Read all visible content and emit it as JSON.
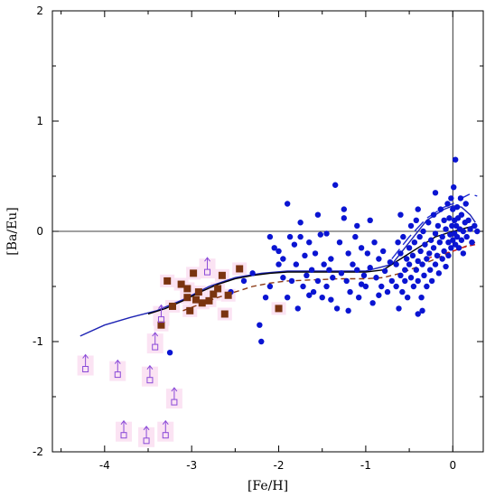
{
  "chart_data": {
    "type": "scatter",
    "title": "",
    "xlabel": "[Fe/H]",
    "ylabel": "[Ba/Eu]",
    "xlim": [
      -4.6,
      0.35
    ],
    "ylim": [
      -2.0,
      2.0
    ],
    "x_ticks": [
      -4,
      -3,
      -2,
      -1,
      0
    ],
    "y_ticks": [
      -2,
      -1,
      0,
      1,
      2
    ],
    "x_tick_labels": [
      "-4",
      "-3",
      "-2",
      "-1",
      "0"
    ],
    "y_tick_labels": [
      "-2",
      "-1",
      "0",
      "1",
      "2"
    ],
    "reference_lines": {
      "y": 0,
      "x": 0
    },
    "grid": false,
    "legend": "none",
    "colors": {
      "blue_points": "#0a14d2",
      "brown_squares": "#7a3410",
      "upper_limits": "#8a4ad8",
      "highlight": "#fbe3f3",
      "model_blue": "#1e24b4",
      "model_black": "#000000",
      "model_dashed": "#8b3a14",
      "model_red_dashed": "#d21e1e",
      "model_long_dash_blue": "#1e2ad2"
    },
    "series": [
      {
        "marker": "circle",
        "color": "#0a14d2",
        "points": [
          [
            -3.25,
            -1.1
          ],
          [
            -2.55,
            -0.55
          ],
          [
            -2.4,
            -0.45
          ],
          [
            -2.3,
            -0.38
          ],
          [
            -2.22,
            -0.85
          ],
          [
            -2.2,
            -1.0
          ],
          [
            -2.15,
            -0.6
          ],
          [
            -2.1,
            -0.5
          ],
          [
            -2.05,
            -0.15
          ],
          [
            -2.0,
            -0.3
          ],
          [
            -1.95,
            -0.25
          ],
          [
            -1.9,
            -0.6
          ],
          [
            -1.87,
            -0.05
          ],
          [
            -1.85,
            -0.45
          ],
          [
            -1.82,
            -0.12
          ],
          [
            -1.8,
            -0.3
          ],
          [
            -1.78,
            -0.7
          ],
          [
            -1.75,
            -0.05
          ],
          [
            -1.72,
            -0.5
          ],
          [
            -1.7,
            -0.22
          ],
          [
            -1.68,
            -0.4
          ],
          [
            -1.65,
            -0.1
          ],
          [
            -1.62,
            -0.35
          ],
          [
            -1.6,
            -0.55
          ],
          [
            -1.58,
            -0.2
          ],
          [
            -1.55,
            -0.45
          ],
          [
            -1.52,
            -0.03
          ],
          [
            -1.5,
            -0.6
          ],
          [
            -1.48,
            -0.3
          ],
          [
            -1.45,
            -0.5
          ],
          [
            -1.42,
            -0.35
          ],
          [
            -1.4,
            -0.25
          ],
          [
            -1.38,
            -0.42
          ],
          [
            -1.35,
            0.42
          ],
          [
            -1.33,
            -0.7
          ],
          [
            -1.3,
            -0.1
          ],
          [
            -1.28,
            -0.38
          ],
          [
            -1.25,
            0.12
          ],
          [
            -1.22,
            -0.45
          ],
          [
            -1.2,
            -0.2
          ],
          [
            -1.18,
            -0.55
          ],
          [
            -1.15,
            -0.3
          ],
          [
            -1.12,
            -0.05
          ],
          [
            -1.1,
            -0.35
          ],
          [
            -1.08,
            -0.6
          ],
          [
            -1.05,
            -0.15
          ],
          [
            -1.02,
            -0.4
          ],
          [
            -1.0,
            -0.5
          ],
          [
            -0.98,
            -0.2
          ],
          [
            -0.95,
            -0.33
          ],
          [
            -0.92,
            -0.65
          ],
          [
            -0.9,
            -0.1
          ],
          [
            -0.88,
            -0.42
          ],
          [
            -0.85,
            -0.25
          ],
          [
            -0.82,
            -0.5
          ],
          [
            -0.8,
            -0.18
          ],
          [
            -0.78,
            -0.36
          ],
          [
            -0.75,
            -0.55
          ],
          [
            -0.72,
            -0.28
          ],
          [
            -0.7,
            -0.45
          ],
          [
            -1.9,
            0.25
          ],
          [
            -1.75,
            0.08
          ],
          [
            -1.55,
            0.15
          ],
          [
            -1.45,
            -0.02
          ],
          [
            -1.25,
            0.2
          ],
          [
            -1.1,
            0.05
          ],
          [
            -0.95,
            0.1
          ],
          [
            -2.1,
            -0.05
          ],
          [
            -2.0,
            -0.18
          ],
          [
            -1.95,
            -0.42
          ],
          [
            -1.65,
            -0.58
          ],
          [
            -1.4,
            -0.62
          ],
          [
            -1.2,
            -0.72
          ],
          [
            -1.05,
            -0.48
          ],
          [
            -0.85,
            -0.58
          ],
          [
            -0.65,
            -0.3
          ],
          [
            -0.65,
            -0.5
          ],
          [
            -0.63,
            -0.1
          ],
          [
            -0.62,
            -0.7
          ],
          [
            -0.6,
            -0.4
          ],
          [
            -0.6,
            -0.2
          ],
          [
            -0.58,
            -0.55
          ],
          [
            -0.57,
            -0.05
          ],
          [
            -0.55,
            -0.35
          ],
          [
            -0.55,
            -0.45
          ],
          [
            -0.53,
            -0.25
          ],
          [
            -0.52,
            -0.6
          ],
          [
            -0.5,
            -0.15
          ],
          [
            -0.5,
            -0.3
          ],
          [
            -0.48,
            0.05
          ],
          [
            -0.48,
            -0.42
          ],
          [
            -0.46,
            -0.22
          ],
          [
            -0.45,
            -0.5
          ],
          [
            -0.44,
            -0.1
          ],
          [
            -0.42,
            -0.35
          ],
          [
            -0.42,
            0.1
          ],
          [
            -0.4,
            -0.27
          ],
          [
            -0.4,
            -0.45
          ],
          [
            -0.38,
            -0.05
          ],
          [
            -0.37,
            -0.18
          ],
          [
            -0.36,
            -0.6
          ],
          [
            -0.35,
            -0.3
          ],
          [
            -0.34,
            0.0
          ],
          [
            -0.33,
            -0.4
          ],
          [
            -0.32,
            -0.12
          ],
          [
            -0.3,
            -0.25
          ],
          [
            -0.3,
            -0.5
          ],
          [
            -0.28,
            0.08
          ],
          [
            -0.27,
            -0.2
          ],
          [
            -0.26,
            -0.35
          ],
          [
            -0.25,
            -0.08
          ],
          [
            -0.24,
            -0.45
          ],
          [
            -0.22,
            -0.15
          ],
          [
            -0.22,
            0.15
          ],
          [
            -0.2,
            -0.3
          ],
          [
            -0.2,
            -0.02
          ],
          [
            -0.18,
            -0.22
          ],
          [
            -0.17,
            0.05
          ],
          [
            -0.16,
            -0.38
          ],
          [
            -0.15,
            -0.1
          ],
          [
            -0.14,
            0.2
          ],
          [
            -0.12,
            -0.25
          ],
          [
            -0.12,
            -0.05
          ],
          [
            -0.1,
            0.1
          ],
          [
            -0.1,
            -0.18
          ],
          [
            -0.08,
            -0.32
          ],
          [
            -0.08,
            0.02
          ],
          [
            -0.06,
            0.25
          ],
          [
            -0.05,
            -0.1
          ],
          [
            -0.05,
            -0.22
          ],
          [
            -0.04,
            0.12
          ],
          [
            -0.03,
            -0.03
          ],
          [
            -0.02,
            0.3
          ],
          [
            -0.02,
            -0.15
          ],
          [
            -0.01,
            0.05
          ],
          [
            0.0,
            -0.08
          ],
          [
            0.0,
            0.2
          ],
          [
            0.01,
            0.4
          ],
          [
            0.02,
            -0.02
          ],
          [
            0.02,
            0.1
          ],
          [
            0.03,
            -0.12
          ],
          [
            0.04,
            0.05
          ],
          [
            0.05,
            0.22
          ],
          [
            0.05,
            -0.05
          ],
          [
            0.06,
            0.12
          ],
          [
            0.07,
            -0.15
          ],
          [
            0.08,
            0.02
          ],
          [
            0.09,
            0.3
          ],
          [
            0.1,
            -0.08
          ],
          [
            0.1,
            0.15
          ],
          [
            0.12,
            0.0
          ],
          [
            0.12,
            -0.2
          ],
          [
            0.14,
            0.08
          ],
          [
            0.15,
            0.25
          ],
          [
            0.16,
            -0.05
          ],
          [
            0.18,
            0.1
          ],
          [
            0.2,
            0.02
          ],
          [
            0.22,
            -0.1
          ],
          [
            0.25,
            0.05
          ],
          [
            0.28,
            0.0
          ],
          [
            0.03,
            0.65
          ],
          [
            -0.4,
            -0.75
          ],
          [
            -0.35,
            -0.72
          ],
          [
            -0.4,
            0.2
          ],
          [
            -0.6,
            0.15
          ],
          [
            -0.2,
            0.35
          ]
        ]
      },
      {
        "marker": "square",
        "color": "#7a3410",
        "points": [
          [
            -3.28,
            -0.45
          ],
          [
            -3.22,
            -0.68
          ],
          [
            -3.12,
            -0.48
          ],
          [
            -3.05,
            -0.6
          ],
          [
            -3.02,
            -0.72
          ],
          [
            -2.98,
            -0.38
          ],
          [
            -2.95,
            -0.62
          ],
          [
            -2.92,
            -0.55
          ],
          [
            -2.88,
            -0.65
          ],
          [
            -2.8,
            -0.63
          ],
          [
            -2.75,
            -0.57
          ],
          [
            -2.7,
            -0.52
          ],
          [
            -2.65,
            -0.4
          ],
          [
            -2.62,
            -0.75
          ],
          [
            -2.58,
            -0.58
          ],
          [
            -2.45,
            -0.34
          ],
          [
            -3.05,
            -0.52
          ],
          [
            -3.35,
            -0.85
          ],
          [
            -2.0,
            -0.7
          ]
        ]
      },
      {
        "marker": "upper-limit",
        "color": "#8a4ad8",
        "points": [
          [
            -4.22,
            -1.25
          ],
          [
            -3.85,
            -1.3
          ],
          [
            -3.78,
            -1.85
          ],
          [
            -3.52,
            -1.9
          ],
          [
            -3.48,
            -1.35
          ],
          [
            -3.42,
            -1.05
          ],
          [
            -3.35,
            -0.8
          ],
          [
            -3.3,
            -1.85
          ],
          [
            -3.2,
            -1.55
          ],
          [
            -2.82,
            -0.37
          ]
        ]
      }
    ],
    "model_curves": [
      {
        "style": "solid",
        "color": "#1e24b4",
        "x": [
          -4.28,
          -4.0,
          -3.7,
          -3.4,
          -3.1,
          -2.8,
          -2.5,
          -2.2,
          -1.9,
          -1.6,
          -1.3,
          -1.0,
          -0.7,
          -0.5,
          -0.3,
          -0.1,
          0.0,
          0.1,
          0.2,
          0.26
        ],
        "y": [
          -0.95,
          -0.85,
          -0.78,
          -0.72,
          -0.62,
          -0.5,
          -0.42,
          -0.38,
          -0.36,
          -0.36,
          -0.36,
          -0.36,
          -0.3,
          -0.1,
          0.1,
          0.2,
          0.23,
          0.22,
          0.15,
          0.08
        ]
      },
      {
        "style": "solid",
        "color": "#000000",
        "x": [
          -3.5,
          -3.3,
          -3.1,
          -2.9,
          -2.7,
          -2.5,
          -2.3,
          -2.1,
          -1.9,
          -1.6,
          -1.3,
          -1.0,
          -0.8,
          -0.6,
          -0.4,
          -0.2,
          0.0,
          0.1,
          0.2,
          0.26
        ],
        "y": [
          -0.75,
          -0.7,
          -0.63,
          -0.55,
          -0.48,
          -0.43,
          -0.4,
          -0.38,
          -0.37,
          -0.37,
          -0.37,
          -0.37,
          -0.35,
          -0.25,
          -0.15,
          -0.05,
          0.0,
          0.02,
          0.04,
          0.05
        ]
      },
      {
        "style": "dashed",
        "color": "#8b3a14",
        "x": [
          -3.1,
          -2.9,
          -2.7,
          -2.5,
          -2.3,
          -2.1,
          -1.9,
          -1.6,
          -1.3,
          -1.0,
          -0.8,
          -0.6,
          -0.4,
          -0.2,
          0.0,
          0.1,
          0.2,
          0.26
        ],
        "y": [
          -0.72,
          -0.66,
          -0.6,
          -0.55,
          -0.5,
          -0.47,
          -0.45,
          -0.44,
          -0.43,
          -0.43,
          -0.42,
          -0.38,
          -0.32,
          -0.25,
          -0.18,
          -0.15,
          -0.12,
          -0.1
        ]
      },
      {
        "style": "dashed",
        "color": "#d21e1e",
        "x": [
          -0.3,
          -0.2,
          -0.1,
          0.0,
          0.1,
          0.2,
          0.26
        ],
        "y": [
          -0.25,
          -0.22,
          -0.2,
          -0.18,
          -0.15,
          -0.13,
          -0.12
        ]
      },
      {
        "style": "longdash",
        "color": "#1e2ad2",
        "x": [
          -0.7,
          -0.5,
          -0.3,
          -0.1,
          0.0,
          0.1,
          0.2,
          0.28
        ],
        "y": [
          -0.25,
          -0.05,
          0.12,
          0.22,
          0.25,
          0.3,
          0.34,
          0.32
        ]
      }
    ]
  }
}
